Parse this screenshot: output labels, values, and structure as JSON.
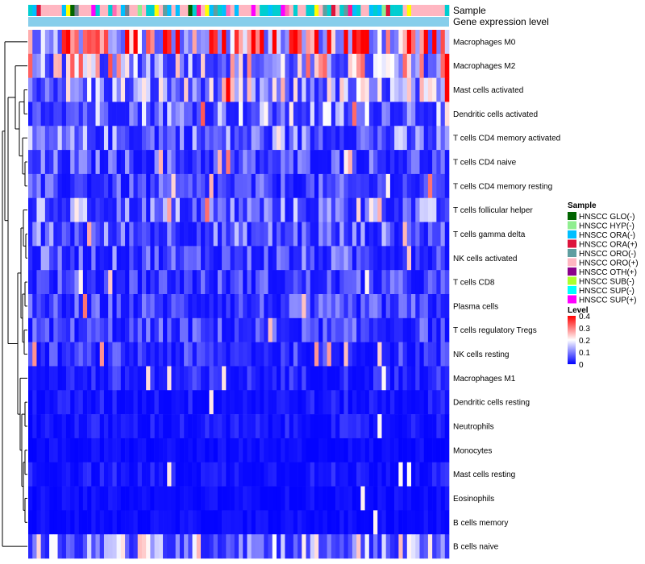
{
  "chart_data": {
    "type": "heatmap",
    "annotation_labels": [
      "Sample",
      "Gene expression level"
    ],
    "annotation_colors": {
      "sample_bar": [
        "#00ced1",
        "#ffb6c1",
        "#00bfff",
        "#ff69b4",
        "#5f9ea0",
        "#ffb6c1",
        "#00ced1",
        "#ff00ff",
        "#ffb6c1",
        "#00bfff",
        "#708090",
        "#ffb6c1",
        "#00ced1",
        "#ff1493",
        "#ffb6c1",
        "#00bfff",
        "#5f9ea0",
        "#ffb6c1",
        "#dc143c",
        "#00ced1",
        "#ffb6c1",
        "#00bfff",
        "#006400",
        "#ffb6c1",
        "#ffff00",
        "#00ced1",
        "#ffb6c1",
        "#90ee90",
        "#00bfff",
        "#ffb6c1"
      ],
      "gene_expression_level": "#87ceeb"
    },
    "rows": [
      {
        "label": "Macrophages M0",
        "mean": 0.3
      },
      {
        "label": "Macrophages M2",
        "mean": 0.15
      },
      {
        "label": "Mast cells activated",
        "mean": 0.12
      },
      {
        "label": "Dendritic cells activated",
        "mean": 0.1
      },
      {
        "label": "T cells CD4 memory activated",
        "mean": 0.08
      },
      {
        "label": "T cells CD4 naive",
        "mean": 0.06
      },
      {
        "label": "T cells CD4 memory resting",
        "mean": 0.05
      },
      {
        "label": "T cells follicular helper",
        "mean": 0.08
      },
      {
        "label": "T cells gamma delta",
        "mean": 0.07
      },
      {
        "label": "NK cells activated",
        "mean": 0.06
      },
      {
        "label": "T cells CD8",
        "mean": 0.05
      },
      {
        "label": "Plasma cells",
        "mean": 0.05
      },
      {
        "label": "T cells regulatory  Tregs",
        "mean": 0.05
      },
      {
        "label": "NK cells resting",
        "mean": 0.04
      },
      {
        "label": "Macrophages M1",
        "mean": 0.03
      },
      {
        "label": "Dendritic cells resting",
        "mean": 0.02
      },
      {
        "label": "Neutrophils",
        "mean": 0.02
      },
      {
        "label": "Monocytes",
        "mean": 0.01
      },
      {
        "label": "Mast cells resting",
        "mean": 0.02
      },
      {
        "label": "Eosinophils",
        "mean": 0.01
      },
      {
        "label": "B cells memory",
        "mean": 0.01
      },
      {
        "label": "B cells naive",
        "mean": 0.12
      }
    ],
    "columns": 100,
    "color_scale": {
      "stops": [
        0,
        0.2,
        0.4
      ],
      "colors": [
        "#0000ff",
        "#ffffff",
        "#ff0000"
      ]
    },
    "legend": {
      "sample": {
        "title": "Sample",
        "items": [
          {
            "label": "HNSCC GLO(-)",
            "color": "#006400"
          },
          {
            "label": "HNSCC HYP(-)",
            "color": "#90ee90"
          },
          {
            "label": "HNSCC ORA(-)",
            "color": "#00bfff"
          },
          {
            "label": "HNSCC ORA(+)",
            "color": "#dc143c"
          },
          {
            "label": "HNSCC ORO(-)",
            "color": "#5f9ea0"
          },
          {
            "label": "HNSCC ORO(+)",
            "color": "#ffb6c1"
          },
          {
            "label": "HNSCC OTH(+)",
            "color": "#8b008b"
          },
          {
            "label": "HNSCC SUB(-)",
            "color": "#adff2f"
          },
          {
            "label": "HNSCC SUP(-)",
            "color": "#00ffff"
          },
          {
            "label": "HNSCC SUP(+)",
            "color": "#ff00ff"
          }
        ]
      },
      "level": {
        "title": "Level",
        "ticks": [
          "0.4",
          "0.3",
          "0.2",
          "0.1",
          "0"
        ],
        "tick_values": [
          0.4,
          0.3,
          0.2,
          0.1,
          0
        ]
      }
    }
  }
}
